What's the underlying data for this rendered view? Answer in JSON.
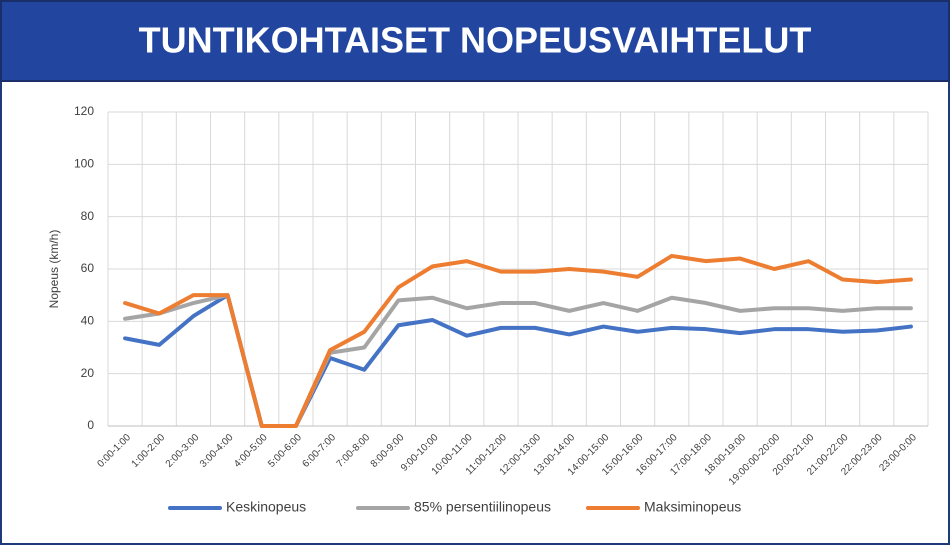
{
  "chart_data": {
    "type": "line",
    "title": "TUNTIKOHTAISET NOPEUSVAIHTELUT",
    "ylabel": "Nopeus (km/h)",
    "categories": [
      "0:00-1:00",
      "1:00-2:00",
      "2:00-3:00",
      "3:00-4:00",
      "4:00-5:00",
      "5:00-6:00",
      "6:00-7:00",
      "7:00-8:00",
      "8:00-9:00",
      "9:00-10:00",
      "10:00-11:00",
      "11:00-12:00",
      "12:00-13:00",
      "13:00-14:00",
      "14:00-15:00",
      "15:00-16:00",
      "16:00-17:00",
      "17:00-18:00",
      "18:00-19:00",
      "19:00:00-20:00",
      "20:00-21:00",
      "21:00-22:00",
      "22:00-23:00",
      "23:00-0:00"
    ],
    "series": [
      {
        "name": "Keskinopeus",
        "color": "#4472c4",
        "values": [
          33.5,
          31,
          42,
          50,
          0,
          0,
          26,
          21.5,
          38.5,
          40.5,
          34.5,
          37.5,
          37.5,
          35,
          38,
          36,
          37.5,
          37,
          35.5,
          37,
          37,
          36,
          36.5,
          38
        ]
      },
      {
        "name": "85% persentiilinopeus",
        "color": "#a5a5a5",
        "values": [
          41,
          43,
          47,
          50,
          0,
          0,
          28,
          30,
          48,
          49,
          45,
          47,
          47,
          44,
          47,
          44,
          49,
          47,
          44,
          45,
          45,
          44,
          45,
          45
        ]
      },
      {
        "name": "Maksiminopeus",
        "color": "#ed7d31",
        "values": [
          47,
          43,
          50,
          50,
          0,
          0,
          29,
          36,
          53,
          61,
          63,
          59,
          59,
          60,
          59,
          57,
          65,
          63,
          64,
          60,
          63,
          56,
          55,
          56
        ]
      }
    ],
    "ylim": [
      0,
      120
    ],
    "yticks": [
      0,
      20,
      40,
      60,
      80,
      100,
      120
    ],
    "grid": true,
    "legend": "bottom"
  }
}
